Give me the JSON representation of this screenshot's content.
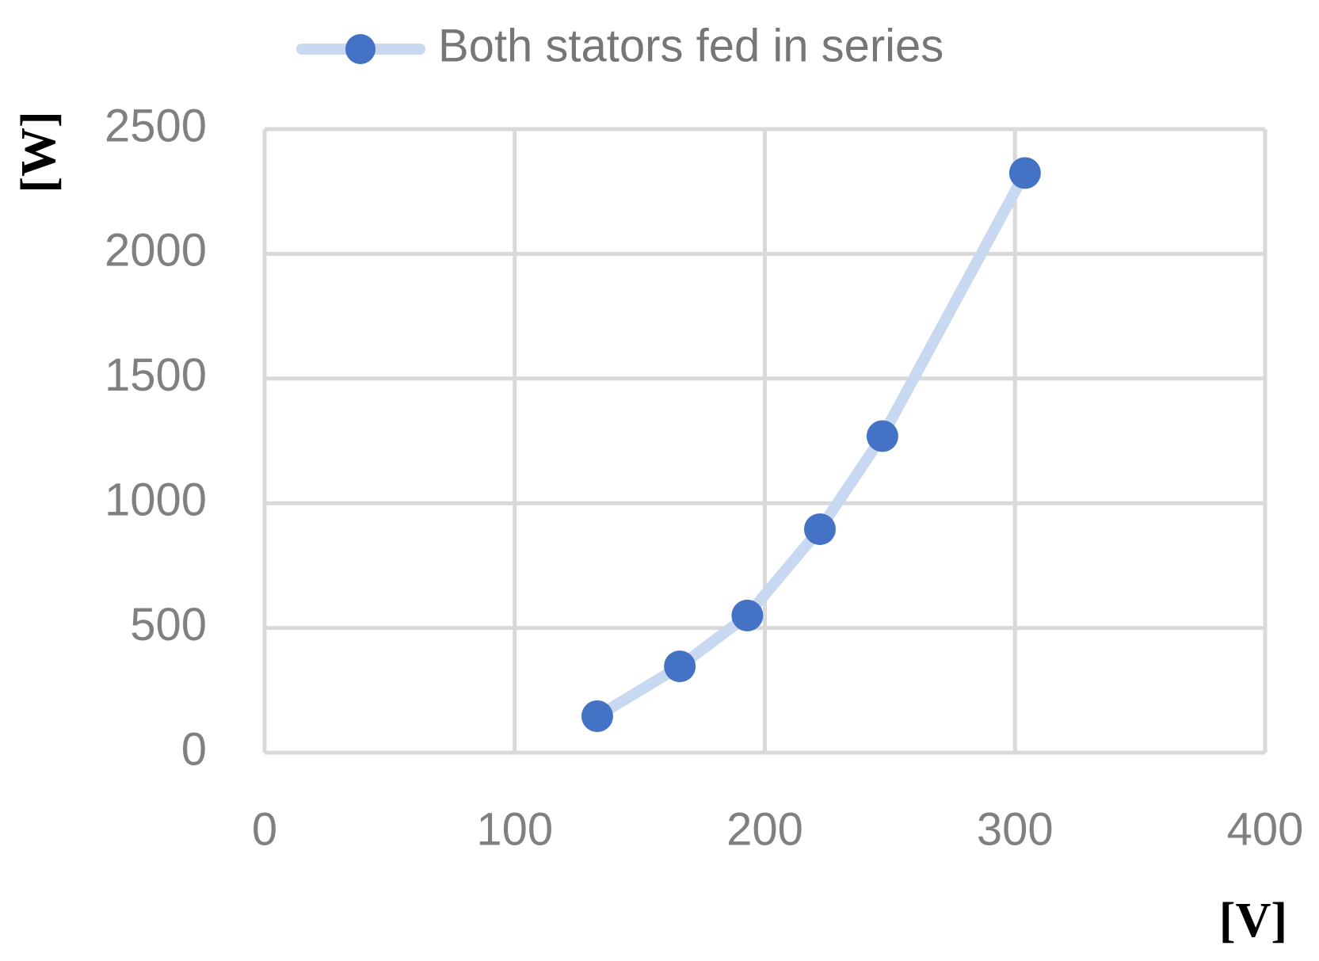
{
  "chart_data": {
    "type": "scatter",
    "x_label": "[V]",
    "y_label": "[W]",
    "xlim": [
      0,
      400
    ],
    "xticks": [
      0,
      100,
      200,
      300,
      400
    ],
    "ylim": [
      0,
      2500
    ],
    "yticks": [
      0,
      500,
      1000,
      1500,
      2000,
      2500
    ],
    "grid": true,
    "legend": "top",
    "connect_points": true,
    "series": [
      {
        "name": "Both stators fed in series",
        "color": "#4472c4",
        "line_color": "#c9d8f1",
        "x": [
          133,
          166,
          193,
          222,
          247,
          304
        ],
        "values": [
          146,
          346,
          550,
          896,
          1269,
          2324
        ]
      }
    ]
  }
}
